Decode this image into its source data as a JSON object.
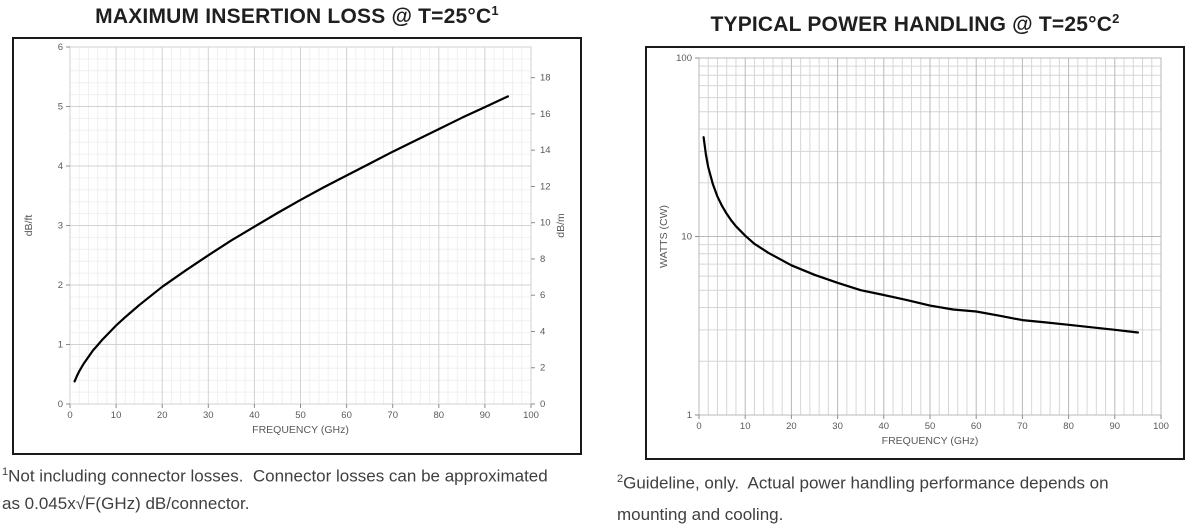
{
  "titles": [
    {
      "text": "MAXIMUM INSERTION LOSS @ T=25°C",
      "sup": "1"
    },
    {
      "text": "TYPICAL POWER HANDLING @ T=25°C",
      "sup": "2"
    }
  ],
  "footnotes": [
    {
      "sup": "1",
      "lines": [
        "Not including connector losses.  Connector losses can be approximated",
        "as 0.045x√F(GHz) dB/connector."
      ]
    },
    {
      "sup": "2",
      "lines": [
        "Guideline, only.  Actual power handling performance depends on",
        "mounting and cooling."
      ]
    }
  ],
  "colors": {
    "curve": "#000000",
    "title_text": "#1f1f1f",
    "axis_text": "#595959",
    "footnote_text": "#3f3f3f",
    "box_border": "#1a1a1a"
  },
  "chart_data": [
    {
      "type": "line",
      "title": "MAXIMUM INSERTION LOSS @ T=25°C¹",
      "xlabel": "FREQUENCY (GHz)",
      "ylabel": "dB/ft",
      "y2label": "dB/m",
      "xscale": "linear",
      "yscale": "linear",
      "xlim": [
        0,
        100
      ],
      "ylim": [
        0,
        6
      ],
      "y2lim": [
        0,
        19.69
      ],
      "x_ticks": [
        0,
        10,
        20,
        30,
        40,
        50,
        60,
        70,
        80,
        90,
        100
      ],
      "y_ticks": [
        0,
        1,
        2,
        3,
        4,
        5,
        6
      ],
      "y2_ticks": [
        0,
        2,
        4,
        6,
        8,
        10,
        12,
        14,
        16,
        18
      ],
      "x_minor_step": 2,
      "y_minor_step": 0.2,
      "grid": true,
      "legend": "none",
      "line_color": "#000000",
      "series": [
        {
          "name": "Maximum insertion loss (dB/ft)",
          "x": [
            1,
            1.5,
            2,
            3,
            4,
            5,
            6,
            7,
            8,
            10,
            12,
            15,
            20,
            25,
            30,
            35,
            40,
            45,
            50,
            55,
            60,
            65,
            70,
            75,
            80,
            85,
            90,
            95
          ],
          "y": [
            0.38,
            0.47,
            0.55,
            0.68,
            0.79,
            0.9,
            0.99,
            1.08,
            1.16,
            1.32,
            1.46,
            1.66,
            1.97,
            2.24,
            2.5,
            2.75,
            2.98,
            3.21,
            3.43,
            3.64,
            3.84,
            4.04,
            4.24,
            4.43,
            4.62,
            4.81,
            4.99,
            5.17
          ]
        }
      ]
    },
    {
      "type": "line",
      "title": "TYPICAL POWER HANDLING @ T=25°C²",
      "xlabel": "FREQUENCY (GHz)",
      "ylabel": "WATTS (CW)",
      "xscale": "linear",
      "yscale": "log",
      "xlim": [
        0,
        100
      ],
      "ylim": [
        1,
        100
      ],
      "x_ticks": [
        0,
        10,
        20,
        30,
        40,
        50,
        60,
        70,
        80,
        90,
        100
      ],
      "y_ticks": [
        1,
        10,
        100
      ],
      "y_minor_ticks": [
        2,
        3,
        4,
        5,
        6,
        7,
        8,
        9,
        20,
        30,
        40,
        50,
        60,
        70,
        80,
        90
      ],
      "x_minor_step": 2,
      "grid": true,
      "legend": "none",
      "line_color": "#000000",
      "series": [
        {
          "name": "Typical power handling (W CW)",
          "x": [
            1,
            1.5,
            2,
            3,
            4,
            5,
            6,
            7,
            8,
            10,
            12,
            15,
            20,
            25,
            30,
            35,
            40,
            45,
            50,
            55,
            60,
            65,
            70,
            75,
            80,
            85,
            90,
            95
          ],
          "y": [
            36,
            28.8,
            24.5,
            19.6,
            16.7,
            14.8,
            13.4,
            12.3,
            11.4,
            10.1,
            9.1,
            8.1,
            6.9,
            6.1,
            5.5,
            5.0,
            4.7,
            4.4,
            4.1,
            3.9,
            3.8,
            3.6,
            3.4,
            3.3,
            3.2,
            3.1,
            3.0,
            2.9
          ]
        }
      ]
    }
  ]
}
